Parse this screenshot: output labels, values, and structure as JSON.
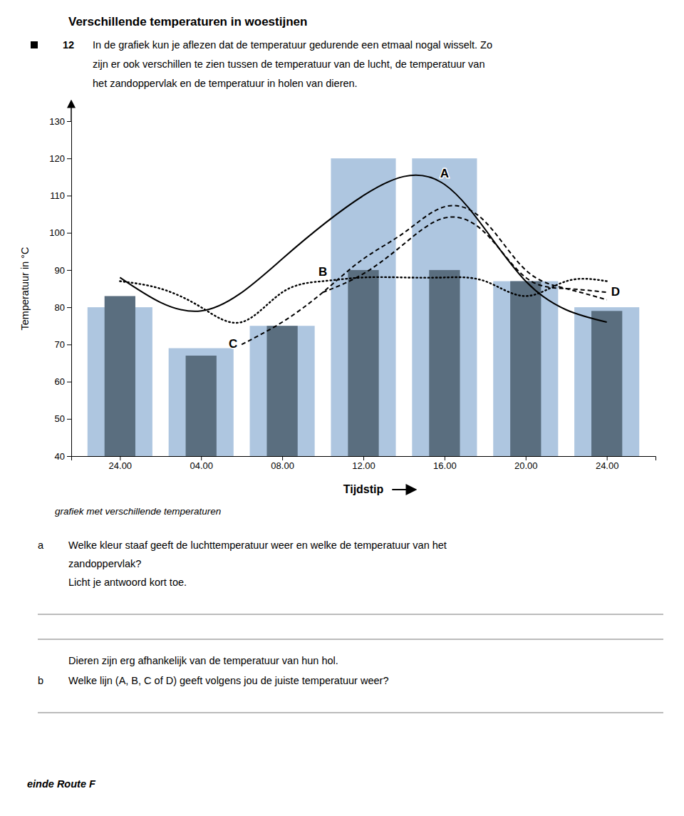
{
  "chart_data": {
    "type": "bar",
    "title": "Verschillende temperaturen in woestijnen",
    "xlabel": "Tijdstip",
    "ylabel": "Temperatuur in °C",
    "caption": "grafiek met verschillende temperaturen",
    "categories": [
      "24.00",
      "04.00",
      "08.00",
      "12.00",
      "16.00",
      "20.00",
      "24.00"
    ],
    "xlim": [
      -0.6,
      6.6
    ],
    "ylim": [
      40,
      130
    ],
    "yticks": [
      40,
      50,
      60,
      70,
      80,
      90,
      100,
      110,
      120,
      130
    ],
    "grid": false,
    "series": [
      {
        "type": "bar",
        "color": "#aec6e0",
        "values": [
          80,
          69,
          75,
          120,
          120,
          87,
          80
        ]
      },
      {
        "type": "bar",
        "color": "#5a6e7f",
        "values": [
          83,
          67,
          75,
          90,
          90,
          87,
          79
        ]
      },
      {
        "type": "line",
        "name": "A",
        "color": "black",
        "line_style": "solid",
        "x": [
          0,
          1,
          2,
          3,
          4,
          5,
          6
        ],
        "values": [
          88,
          79,
          93,
          110,
          113,
          87,
          76
        ]
      },
      {
        "type": "line",
        "name": "B",
        "color": "black",
        "line_style": "dotted",
        "x": [
          0,
          0.5,
          1,
          1.5,
          2,
          2.5,
          3,
          3.5,
          4,
          4.5,
          5,
          5.5,
          6
        ],
        "values": [
          87,
          85,
          80,
          76,
          84,
          87,
          88,
          88,
          88,
          87,
          83,
          87,
          87
        ]
      },
      {
        "type": "line",
        "name": "C",
        "color": "black",
        "line_style": "dashed",
        "x": [
          1.5,
          2,
          2.5,
          3,
          3.5,
          4,
          4.5,
          5,
          5.5,
          6
        ],
        "values": [
          70,
          76,
          84,
          93,
          100,
          107,
          103,
          90,
          85,
          82
        ]
      },
      {
        "type": "line",
        "name": "D",
        "color": "black",
        "line_style": "dashed",
        "x": [
          2.5,
          3,
          3.5,
          4,
          4.5,
          5,
          5.5,
          6
        ],
        "values": [
          84,
          89,
          97,
          104,
          100,
          88,
          85,
          84
        ]
      }
    ]
  },
  "exercise": {
    "number": "12",
    "intro": [
      "In de grafiek kun je aflezen dat de temperatuur gedurende een etmaal nogal wisselt. Zo",
      "zijn er ook verschillen te zien tussen de temperatuur van de lucht, de temperatuur van",
      "het zandoppervlak en de temperatuur in holen van dieren."
    ]
  },
  "questions": [
    {
      "label": "a",
      "lines": [
        "Welke kleur staaf geeft de luchttemperatuur weer en welke de temperatuur van het",
        "zandoppervlak?",
        "Licht je antwoord kort toe."
      ]
    },
    {
      "lines": [
        "Dieren zijn erg afhankelijk van de temperatuur van hun hol."
      ]
    },
    {
      "label": "b",
      "lines": [
        "Welke lijn (A, B, C of D) geeft volgens jou de juiste temperatuur weer?"
      ]
    }
  ],
  "footer": "einde Route F"
}
